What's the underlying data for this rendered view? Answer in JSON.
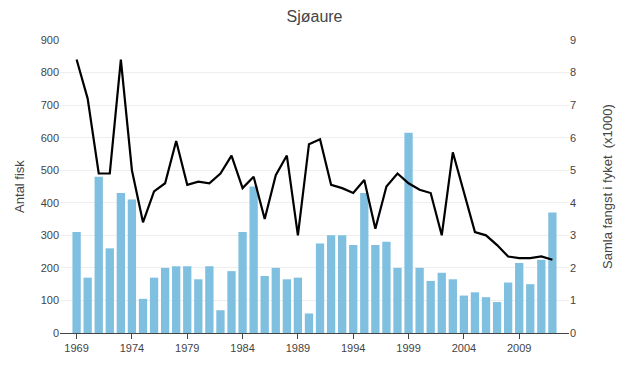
{
  "chart_data": {
    "type": "bar",
    "title": "Sjøaure",
    "ylabel": "Antal fisk",
    "y2label": "Samla fangst i fyket  (x1000)",
    "x": [
      1969,
      1970,
      1971,
      1972,
      1973,
      1974,
      1975,
      1976,
      1977,
      1978,
      1979,
      1980,
      1981,
      1982,
      1983,
      1984,
      1985,
      1986,
      1987,
      1988,
      1989,
      1990,
      1991,
      1992,
      1993,
      1994,
      1995,
      1996,
      1997,
      1998,
      1999,
      2000,
      2001,
      2002,
      2003,
      2004,
      2005,
      2006,
      2007,
      2008,
      2009,
      2010,
      2011,
      2012
    ],
    "series": [
      {
        "type": "bar",
        "color": "#7fbfdf",
        "values": [
          310,
          170,
          480,
          260,
          430,
          410,
          105,
          170,
          200,
          205,
          205,
          165,
          205,
          70,
          190,
          310,
          450,
          175,
          200,
          165,
          170,
          60,
          275,
          300,
          300,
          270,
          430,
          270,
          280,
          200,
          615,
          200,
          160,
          185,
          165,
          115,
          125,
          110,
          95,
          155,
          215,
          150,
          225,
          370
        ]
      },
      {
        "type": "line",
        "color": "#000000",
        "axis": "y2",
        "values": [
          8.4,
          7.2,
          4.9,
          4.9,
          8.4,
          5.0,
          3.4,
          4.35,
          4.6,
          5.9,
          4.55,
          4.65,
          4.6,
          4.9,
          5.45,
          4.45,
          4.8,
          3.5,
          4.85,
          5.45,
          3.0,
          5.8,
          5.95,
          4.55,
          4.45,
          4.3,
          4.7,
          3.2,
          4.5,
          4.9,
          4.6,
          4.4,
          4.3,
          3.0,
          5.55,
          4.3,
          3.1,
          3.0,
          2.7,
          2.35,
          2.3,
          2.3,
          2.35,
          2.25
        ]
      }
    ],
    "xlim": [
      1967.5,
      2013.5
    ],
    "xticks": [
      1969,
      1974,
      1979,
      1984,
      1989,
      1994,
      1999,
      2004,
      2009
    ],
    "ylim": [
      0,
      900
    ],
    "yticks": [
      0,
      100,
      200,
      300,
      400,
      500,
      600,
      700,
      800,
      900
    ],
    "y2lim": [
      0,
      9
    ],
    "y2ticks": [
      0,
      1,
      2,
      3,
      4,
      5,
      6,
      7,
      8,
      9
    ],
    "grid": true
  }
}
